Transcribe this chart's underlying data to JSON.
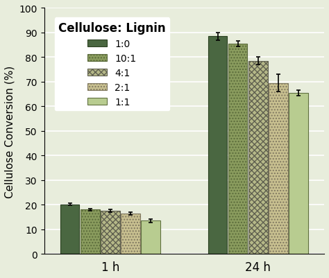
{
  "ylabel": "Cellulose Conversion (%)",
  "xlabel": "",
  "groups": [
    "1 h",
    "24 h"
  ],
  "series_labels": [
    "1:0",
    "10:1",
    "4:1",
    "2:1",
    "1:1"
  ],
  "values": [
    [
      20.2,
      88.5
    ],
    [
      18.0,
      85.5
    ],
    [
      17.5,
      78.5
    ],
    [
      16.5,
      69.5
    ],
    [
      13.5,
      65.5
    ]
  ],
  "errors": [
    [
      0.5,
      1.5
    ],
    [
      0.4,
      1.2
    ],
    [
      0.5,
      1.5
    ],
    [
      0.6,
      3.5
    ],
    [
      0.8,
      1.2
    ]
  ],
  "bar_face_colors": [
    "#4a6741",
    "#8a9c5e",
    "#c8c8a0",
    "#d8cfa0",
    "#c8d8a0"
  ],
  "background_color": "#e8eddc",
  "ylim": [
    0,
    100
  ],
  "yticks": [
    0,
    10,
    20,
    30,
    40,
    50,
    60,
    70,
    80,
    90,
    100
  ],
  "legend_title": "Cellulose: Lignin",
  "figsize": [
    4.74,
    4.02
  ],
  "dpi": 100
}
